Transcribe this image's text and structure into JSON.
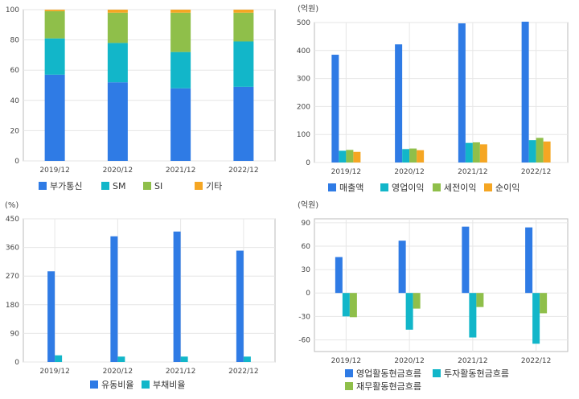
{
  "colors": {
    "blue": "#2f7be5",
    "teal": "#12b6c9",
    "green": "#8fbf4a",
    "orange": "#f5a623",
    "grid": "#e6e6e6",
    "frame": "#bbbbbb"
  },
  "chart_data": [
    {
      "type": "bar",
      "stacked": true,
      "categories": [
        "2019/12",
        "2020/12",
        "2021/12",
        "2022/12"
      ],
      "series": [
        {
          "name": "부가통신",
          "values": [
            57,
            52,
            48,
            49
          ]
        },
        {
          "name": "SM",
          "values": [
            24,
            26,
            24,
            30
          ]
        },
        {
          "name": "SI",
          "values": [
            18,
            20,
            26,
            19
          ]
        },
        {
          "name": "기타",
          "values": [
            1,
            2,
            2,
            2
          ]
        }
      ],
      "unit": "",
      "ylim": [
        0,
        100
      ],
      "yticks": [
        "0",
        "20",
        "40",
        "60",
        "80",
        "100"
      ],
      "legend": "bottom"
    },
    {
      "type": "bar",
      "categories": [
        "2019/12",
        "2020/12",
        "2021/12",
        "2022/12"
      ],
      "series": [
        {
          "name": "매출액",
          "values": [
            385,
            422,
            497,
            503
          ]
        },
        {
          "name": "영업이익",
          "values": [
            42,
            48,
            70,
            80
          ]
        },
        {
          "name": "세전이익",
          "values": [
            45,
            50,
            72,
            88
          ]
        },
        {
          "name": "순이익",
          "values": [
            38,
            44,
            65,
            75
          ]
        }
      ],
      "unit": "(억원)",
      "ylim": [
        0,
        500
      ],
      "yticks": [
        "0",
        "100",
        "200",
        "300",
        "400",
        "500"
      ],
      "legend": "bottom"
    },
    {
      "type": "bar",
      "categories": [
        "2019/12",
        "2020/12",
        "2021/12",
        "2022/12"
      ],
      "series": [
        {
          "name": "유동비율",
          "values": [
            285,
            395,
            410,
            350
          ]
        },
        {
          "name": "부채비율",
          "values": [
            21,
            17,
            17,
            17
          ]
        }
      ],
      "unit": "(%)",
      "ylim": [
        0,
        450
      ],
      "yticks": [
        "0",
        "90",
        "180",
        "270",
        "360",
        "450"
      ],
      "legend": "bottom"
    },
    {
      "type": "bar",
      "categories": [
        "2019/12",
        "2020/12",
        "2021/12",
        "2022/12"
      ],
      "series": [
        {
          "name": "영업활동현금흐름",
          "values": [
            46,
            67,
            85,
            84
          ]
        },
        {
          "name": "투자활동현금흐름",
          "values": [
            -30,
            -47,
            -57,
            -65
          ]
        },
        {
          "name": "재무활동현금흐름",
          "values": [
            -31,
            -20,
            -18,
            -26
          ]
        }
      ],
      "unit": "(억원)",
      "ylim": [
        -75,
        95
      ],
      "yticks": [
        "-60",
        "-30",
        "0",
        "30",
        "60",
        "90"
      ],
      "legend": "bottom"
    }
  ]
}
